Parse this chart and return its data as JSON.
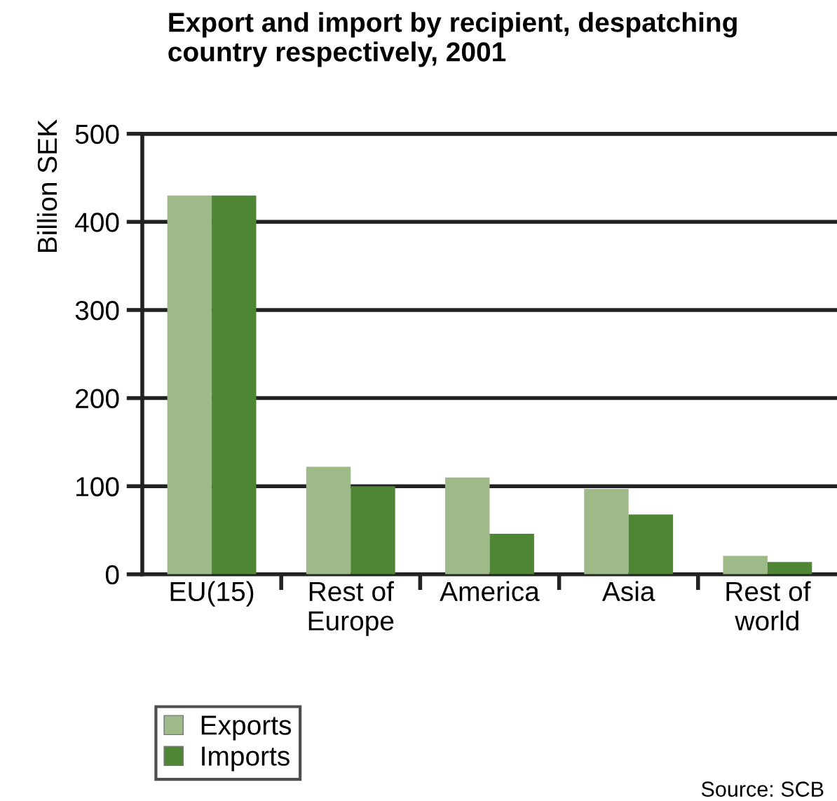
{
  "chart_data": {
    "type": "bar",
    "title": "Export and import by recipient, despatching\ncountry respectively, 2001",
    "ylabel": "Billion SEK",
    "categories": [
      "EU(15)",
      "Rest of\nEurope",
      "America",
      "Asia",
      "Rest of\nworld"
    ],
    "series": [
      {
        "name": "Exports",
        "color": "#9fba89",
        "values": [
          430,
          122,
          110,
          97,
          21
        ]
      },
      {
        "name": "Imports",
        "color": "#4f8635",
        "values": [
          430,
          100,
          46,
          68,
          14
        ]
      }
    ],
    "ylim": [
      0,
      500
    ],
    "yticks": [
      0,
      100,
      200,
      300,
      400,
      500
    ],
    "grid": "y",
    "legend": "bottom left",
    "annotations": [
      "Source: SCB"
    ]
  }
}
